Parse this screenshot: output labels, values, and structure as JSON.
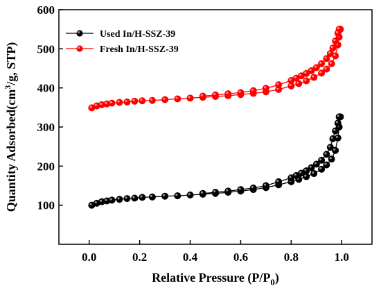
{
  "chart_data": {
    "type": "line",
    "xlabel_main": "Relative Pressure (P/P",
    "xlabel_sub": "0",
    "xlabel_end": ")",
    "ylabel_main": "Quantity Adsorbed(cm",
    "ylabel_sup": "3",
    "ylabel_end": "/g, STP)",
    "xlim": [
      -0.12,
      1.12
    ],
    "ylim": [
      0,
      600
    ],
    "xticks": [
      0.0,
      0.2,
      0.4,
      0.6,
      0.8,
      1.0
    ],
    "xtick_labels": [
      "0.0",
      "0.2",
      "0.4",
      "0.6",
      "0.8",
      "1.0"
    ],
    "yticks": [
      100,
      200,
      300,
      400,
      500,
      600
    ],
    "ytick_labels": [
      "100",
      "200",
      "300",
      "400",
      "500",
      "600"
    ],
    "legend_position": "top-left",
    "series": [
      {
        "name": "Used In/H-SSZ-39",
        "color": "#000000",
        "marker": "circle",
        "adsorption": [
          [
            0.01,
            100
          ],
          [
            0.03,
            105
          ],
          [
            0.05,
            109
          ],
          [
            0.07,
            111
          ],
          [
            0.09,
            113
          ],
          [
            0.12,
            115
          ],
          [
            0.15,
            117
          ],
          [
            0.18,
            118
          ],
          [
            0.21,
            120
          ],
          [
            0.25,
            121
          ],
          [
            0.3,
            123
          ],
          [
            0.35,
            124
          ],
          [
            0.4,
            126
          ],
          [
            0.45,
            128
          ],
          [
            0.5,
            130
          ],
          [
            0.55,
            133
          ],
          [
            0.6,
            136
          ],
          [
            0.65,
            140
          ],
          [
            0.7,
            145
          ],
          [
            0.75,
            152
          ],
          [
            0.8,
            160
          ],
          [
            0.83,
            166
          ],
          [
            0.86,
            173
          ],
          [
            0.89,
            181
          ],
          [
            0.92,
            192
          ],
          [
            0.94,
            203
          ],
          [
            0.96,
            218
          ],
          [
            0.975,
            240
          ],
          [
            0.985,
            272
          ],
          [
            0.99,
            300
          ],
          [
            0.995,
            326
          ]
        ],
        "desorption": [
          [
            0.99,
            326
          ],
          [
            0.985,
            310
          ],
          [
            0.975,
            290
          ],
          [
            0.965,
            270
          ],
          [
            0.955,
            248
          ],
          [
            0.94,
            230
          ],
          [
            0.92,
            215
          ],
          [
            0.9,
            205
          ],
          [
            0.88,
            196
          ],
          [
            0.86,
            188
          ],
          [
            0.84,
            182
          ],
          [
            0.82,
            176
          ],
          [
            0.8,
            170
          ],
          [
            0.75,
            160
          ],
          [
            0.7,
            150
          ],
          [
            0.65,
            144
          ],
          [
            0.6,
            140
          ],
          [
            0.55,
            136
          ],
          [
            0.5,
            133
          ],
          [
            0.45,
            130
          ]
        ]
      },
      {
        "name": "Fresh In/H-SSZ-39",
        "color": "#ff0000",
        "marker": "circle",
        "adsorption": [
          [
            0.01,
            349
          ],
          [
            0.03,
            354
          ],
          [
            0.05,
            357
          ],
          [
            0.07,
            359
          ],
          [
            0.09,
            361
          ],
          [
            0.12,
            363
          ],
          [
            0.15,
            364
          ],
          [
            0.18,
            366
          ],
          [
            0.21,
            367
          ],
          [
            0.25,
            368
          ],
          [
            0.3,
            370
          ],
          [
            0.35,
            372
          ],
          [
            0.4,
            374
          ],
          [
            0.45,
            376
          ],
          [
            0.5,
            378
          ],
          [
            0.55,
            380
          ],
          [
            0.6,
            383
          ],
          [
            0.65,
            386
          ],
          [
            0.7,
            390
          ],
          [
            0.75,
            396
          ],
          [
            0.8,
            405
          ],
          [
            0.83,
            411
          ],
          [
            0.86,
            418
          ],
          [
            0.89,
            427
          ],
          [
            0.92,
            438
          ],
          [
            0.94,
            448
          ],
          [
            0.96,
            462
          ],
          [
            0.975,
            482
          ],
          [
            0.985,
            510
          ],
          [
            0.99,
            530
          ],
          [
            0.995,
            550
          ]
        ],
        "desorption": [
          [
            0.99,
            550
          ],
          [
            0.985,
            540
          ],
          [
            0.975,
            520
          ],
          [
            0.965,
            502
          ],
          [
            0.955,
            488
          ],
          [
            0.94,
            475
          ],
          [
            0.92,
            462
          ],
          [
            0.9,
            452
          ],
          [
            0.88,
            444
          ],
          [
            0.86,
            437
          ],
          [
            0.84,
            431
          ],
          [
            0.82,
            425
          ],
          [
            0.8,
            419
          ],
          [
            0.75,
            408
          ],
          [
            0.7,
            399
          ],
          [
            0.65,
            393
          ],
          [
            0.6,
            388
          ],
          [
            0.55,
            385
          ],
          [
            0.5,
            382
          ],
          [
            0.45,
            379
          ]
        ]
      }
    ]
  }
}
